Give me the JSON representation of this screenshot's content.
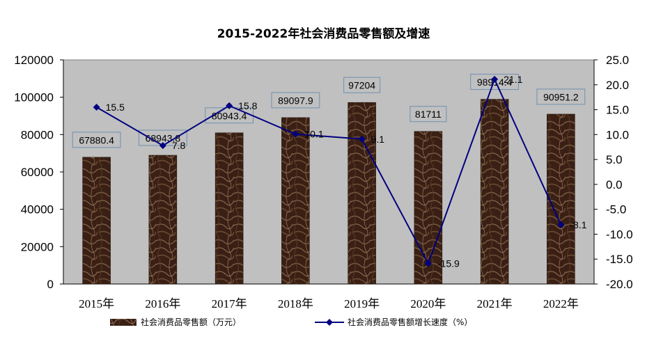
{
  "chart_data": {
    "type": "bar+line",
    "title": "2015-2022年社会消费品零售额及增速",
    "categories": [
      "2015年",
      "2016年",
      "2017年",
      "2018年",
      "2019年",
      "2020年",
      "2021年",
      "2022年"
    ],
    "bar_series": {
      "name": "社会消费品零售额（万元）",
      "values": [
        67880.4,
        68943.8,
        80943.4,
        89097.9,
        97204,
        81711,
        98914.4,
        90951.2
      ],
      "labels": [
        "67880.4",
        "68943.8",
        "80943.4",
        "89097.9",
        "97204",
        "81711",
        "98914.4",
        "90951.2"
      ],
      "color": "#4a2a1a"
    },
    "line_series": {
      "name": "社会消费品零售额增长速度（%）",
      "values": [
        15.5,
        7.8,
        15.8,
        10.1,
        9.1,
        -15.9,
        21.1,
        -8.1
      ],
      "labels": [
        "15.5",
        "7.8",
        "15.8",
        "10.1",
        "9.1",
        "-15.9",
        "21.1",
        "-8.1"
      ],
      "color": "#000080"
    },
    "y_left": {
      "lim": [
        0,
        120000
      ],
      "ticks": [
        "0",
        "20000",
        "40000",
        "60000",
        "80000",
        "100000",
        "120000"
      ]
    },
    "y_right": {
      "lim": [
        -20,
        25
      ],
      "ticks": [
        "25.0",
        "20.0",
        "15.0",
        "10.0",
        "5.0",
        "0.0",
        "-5.0",
        "-10.0",
        "-15.0",
        "-20.0"
      ]
    },
    "plot_background": "#c0c0c0",
    "grid": false,
    "legend_position": "bottom"
  }
}
